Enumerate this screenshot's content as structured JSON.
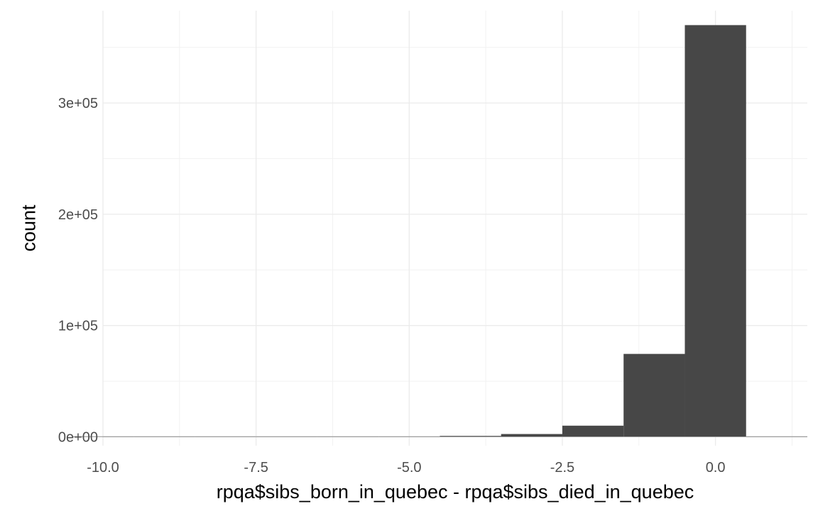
{
  "chart_data": {
    "type": "bar",
    "title": "",
    "xlabel": "rpqa$sibs_born_in_quebec - rpqa$sibs_died_in_quebec",
    "ylabel": "count",
    "xlim": [
      -10,
      1.5
    ],
    "ylim": [
      -8000,
      383000
    ],
    "x_ticks": [
      -10,
      -7.5,
      -5,
      -2.5,
      0
    ],
    "x_tick_labels": [
      "-10.0",
      "-7.5",
      "-5.0",
      "-2.5",
      "0.0"
    ],
    "y_ticks": [
      0,
      100000,
      200000,
      300000
    ],
    "y_tick_labels": [
      "0e+00",
      "1e+05",
      "2e+05",
      "3e+05"
    ],
    "grid": true,
    "bar_color": "#474747",
    "bins": [
      {
        "x0": -10.5,
        "x1": -9.5,
        "value": 0
      },
      {
        "x0": -9.5,
        "x1": -8.5,
        "value": 0
      },
      {
        "x0": -8.5,
        "x1": -7.5,
        "value": 0
      },
      {
        "x0": -7.5,
        "x1": -6.5,
        "value": 0
      },
      {
        "x0": -6.5,
        "x1": -5.5,
        "value": 100
      },
      {
        "x0": -5.5,
        "x1": -4.5,
        "value": 250
      },
      {
        "x0": -4.5,
        "x1": -3.5,
        "value": 800
      },
      {
        "x0": -3.5,
        "x1": -2.5,
        "value": 2500
      },
      {
        "x0": -2.5,
        "x1": -1.5,
        "value": 10000
      },
      {
        "x0": -1.5,
        "x1": -0.5,
        "value": 74500
      },
      {
        "x0": -0.5,
        "x1": 0.5,
        "value": 370000
      },
      {
        "x0": 0.5,
        "x1": 1.5,
        "value": 30
      }
    ]
  }
}
